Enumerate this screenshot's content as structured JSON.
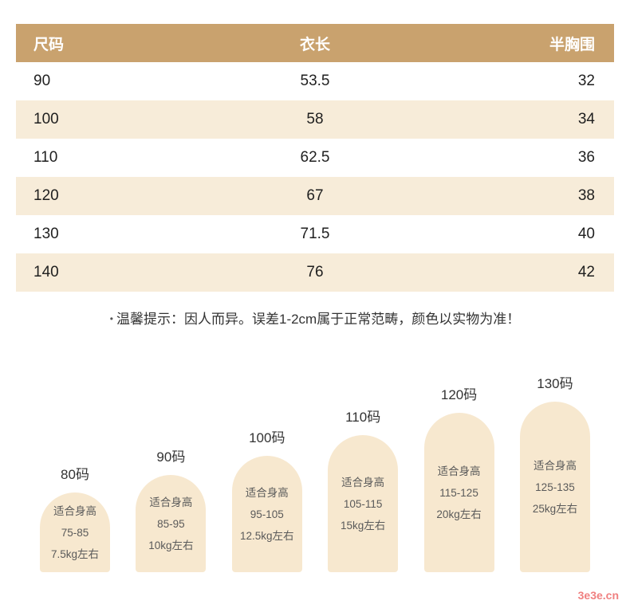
{
  "chart_data": [
    {
      "type": "table",
      "columns": [
        "尺码",
        "衣长",
        "半胸围"
      ],
      "rows": [
        [
          "90",
          "53.5",
          "32"
        ],
        [
          "100",
          "58",
          "34"
        ],
        [
          "110",
          "62.5",
          "36"
        ],
        [
          "120",
          "67",
          "38"
        ],
        [
          "130",
          "71.5",
          "40"
        ],
        [
          "140",
          "76",
          "42"
        ]
      ]
    },
    {
      "type": "bar",
      "categories": [
        "80码",
        "90码",
        "100码",
        "110码",
        "120码",
        "130码"
      ],
      "bars": [
        {
          "size": "80码",
          "fit_label": "适合身高",
          "height_range": "75-85",
          "weight": "7.5kg左右",
          "height_min": 75,
          "height_max": 85,
          "weight_kg": 7.5
        },
        {
          "size": "90码",
          "fit_label": "适合身高",
          "height_range": "85-95",
          "weight": "10kg左右",
          "height_min": 85,
          "height_max": 95,
          "weight_kg": 10
        },
        {
          "size": "100码",
          "fit_label": "适合身高",
          "height_range": "95-105",
          "weight": "12.5kg左右",
          "height_min": 95,
          "height_max": 105,
          "weight_kg": 12.5
        },
        {
          "size": "110码",
          "fit_label": "适合身高",
          "height_range": "105-115",
          "weight": "15kg左右",
          "height_min": 105,
          "height_max": 115,
          "weight_kg": 15
        },
        {
          "size": "120码",
          "fit_label": "适合身高",
          "height_range": "115-125",
          "weight": "20kg左右",
          "height_min": 115,
          "height_max": 125,
          "weight_kg": 20
        },
        {
          "size": "130码",
          "fit_label": "适合身高",
          "height_range": "125-135",
          "weight": "25kg左右",
          "height_min": 125,
          "height_max": 135,
          "weight_kg": 25
        }
      ]
    }
  ],
  "note": {
    "bullet": "•",
    "text": "温馨提示：因人而异。误差1-2cm属于正常范畴，颜色以实物为准！"
  },
  "watermark": "3e3e.cn",
  "colors": {
    "header_bg": "#c9a26e",
    "row_alt_bg": "#f7ecd9",
    "pill_bg": "#f7e8cf",
    "watermark": "#f08080"
  }
}
